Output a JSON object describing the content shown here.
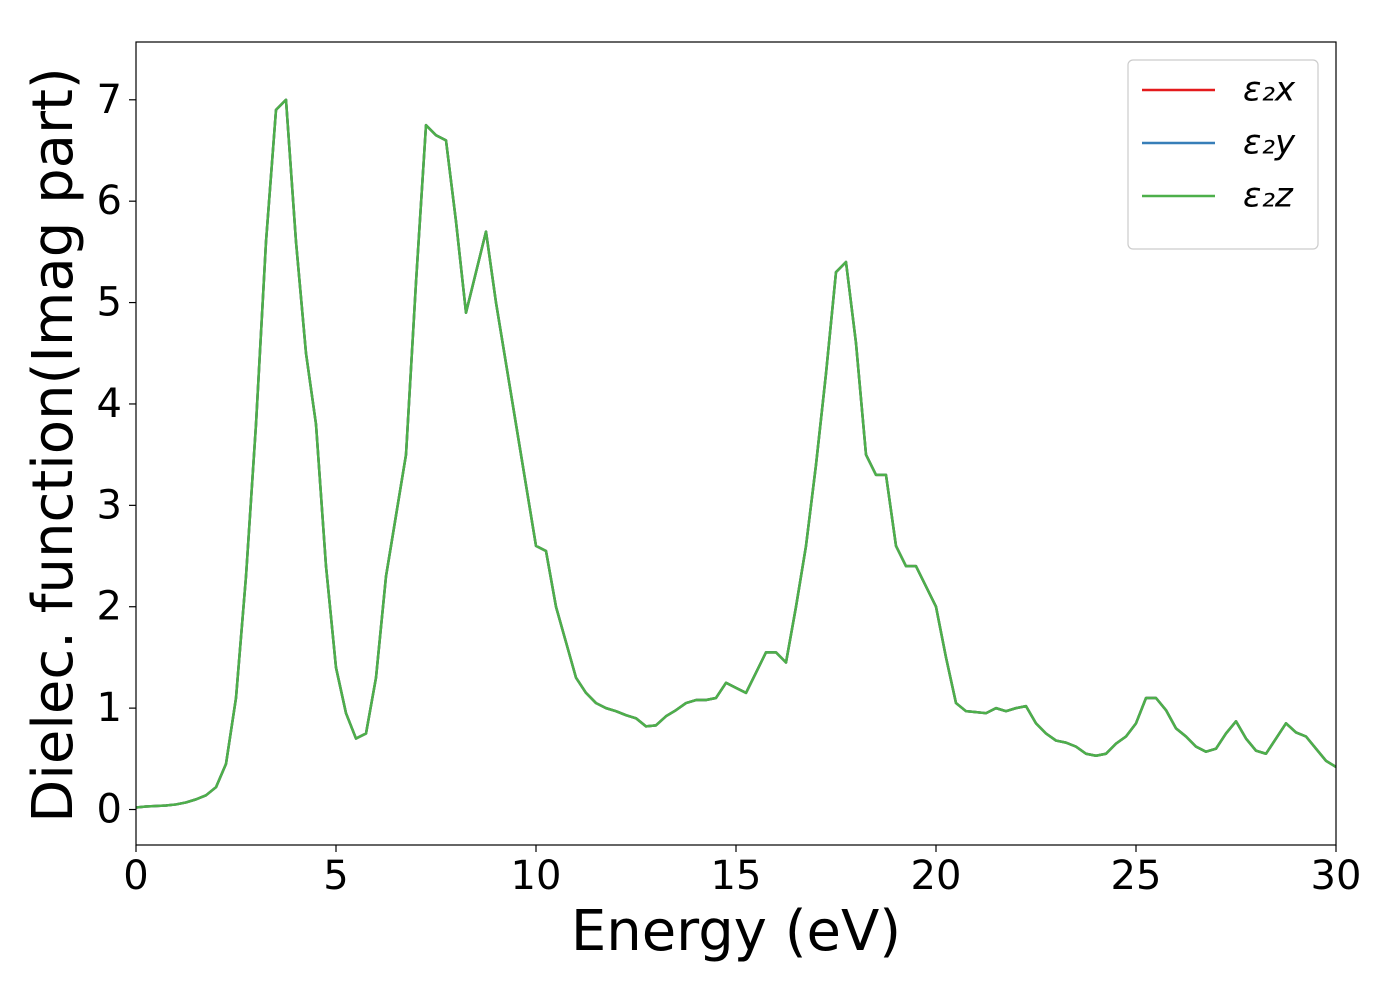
{
  "chart_data": {
    "type": "line",
    "xlabel": "Energy (eV)",
    "ylabel": "Dielec. function(Imag part)",
    "xlim": [
      0,
      30
    ],
    "ylim": [
      -0.35,
      7.57
    ],
    "xticks": [
      0,
      5,
      10,
      15,
      20,
      25,
      30
    ],
    "yticks": [
      0,
      1,
      2,
      3,
      4,
      5,
      6,
      7
    ],
    "grid": false,
    "legend": "upper right",
    "x": [
      0,
      0.25,
      0.5,
      0.75,
      1,
      1.25,
      1.5,
      1.75,
      2,
      2.25,
      2.5,
      2.75,
      3,
      3.25,
      3.5,
      3.75,
      4,
      4.25,
      4.5,
      4.75,
      5,
      5.25,
      5.5,
      5.75,
      6,
      6.25,
      6.5,
      6.75,
      7,
      7.25,
      7.5,
      7.75,
      8,
      8.25,
      8.5,
      8.75,
      9,
      9.25,
      9.5,
      9.75,
      10,
      10.25,
      10.5,
      10.75,
      11,
      11.25,
      11.5,
      11.75,
      12,
      12.25,
      12.5,
      12.75,
      13,
      13.25,
      13.5,
      13.75,
      14,
      14.25,
      14.5,
      14.75,
      15,
      15.25,
      15.5,
      15.75,
      16,
      16.25,
      16.5,
      16.75,
      17,
      17.25,
      17.5,
      17.75,
      18,
      18.25,
      18.5,
      18.75,
      19,
      19.25,
      19.5,
      19.75,
      20,
      20.25,
      20.5,
      20.75,
      21,
      21.25,
      21.5,
      21.75,
      22,
      22.25,
      22.5,
      22.75,
      23,
      23.25,
      23.5,
      23.75,
      24,
      24.25,
      24.5,
      24.75,
      25,
      25.25,
      25.5,
      25.75,
      26,
      26.25,
      26.5,
      26.75,
      27,
      27.25,
      27.5,
      27.75,
      28,
      28.25,
      28.5,
      28.75,
      29,
      29.25,
      29.5,
      29.75,
      30
    ],
    "series": [
      {
        "name": "ε₂x",
        "color": "#e41a1c",
        "values": [
          0.02,
          0.03,
          0.035,
          0.04,
          0.05,
          0.07,
          0.1,
          0.14,
          0.22,
          0.45,
          1.1,
          2.3,
          3.8,
          5.6,
          6.9,
          7.0,
          5.6,
          4.5,
          3.8,
          2.4,
          1.4,
          0.95,
          0.7,
          0.75,
          1.3,
          2.3,
          2.9,
          3.5,
          5.2,
          6.75,
          6.65,
          6.6,
          5.8,
          4.9,
          5.3,
          5.7,
          5.0,
          4.4,
          3.8,
          3.2,
          2.6,
          2.55,
          2.0,
          1.65,
          1.3,
          1.15,
          1.05,
          1.0,
          0.97,
          0.93,
          0.9,
          0.82,
          0.83,
          0.92,
          0.98,
          1.05,
          1.08,
          1.08,
          1.1,
          1.25,
          1.2,
          1.15,
          1.35,
          1.55,
          1.55,
          1.45,
          2.0,
          2.6,
          3.4,
          4.3,
          5.3,
          5.4,
          4.6,
          3.5,
          3.3,
          3.3,
          2.6,
          2.4,
          2.4,
          2.2,
          2.0,
          1.5,
          1.05,
          0.97,
          0.96,
          0.95,
          1.0,
          0.97,
          1.0,
          1.02,
          0.85,
          0.75,
          0.68,
          0.66,
          0.62,
          0.55,
          0.53,
          0.55,
          0.65,
          0.72,
          0.85,
          1.1,
          1.1,
          0.98,
          0.8,
          0.72,
          0.62,
          0.57,
          0.6,
          0.75,
          0.87,
          0.7,
          0.58,
          0.55,
          0.7,
          0.85,
          0.76,
          0.72,
          0.6,
          0.48,
          0.42
        ]
      },
      {
        "name": "ε₂y",
        "color": "#377eb8",
        "values": [
          0.02,
          0.03,
          0.035,
          0.04,
          0.05,
          0.07,
          0.1,
          0.14,
          0.22,
          0.45,
          1.1,
          2.3,
          3.8,
          5.6,
          6.9,
          7.0,
          5.6,
          4.5,
          3.8,
          2.4,
          1.4,
          0.95,
          0.7,
          0.75,
          1.3,
          2.3,
          2.9,
          3.5,
          5.2,
          6.75,
          6.65,
          6.6,
          5.8,
          4.9,
          5.3,
          5.7,
          5.0,
          4.4,
          3.8,
          3.2,
          2.6,
          2.55,
          2.0,
          1.65,
          1.3,
          1.15,
          1.05,
          1.0,
          0.97,
          0.93,
          0.9,
          0.82,
          0.83,
          0.92,
          0.98,
          1.05,
          1.08,
          1.08,
          1.1,
          1.25,
          1.2,
          1.15,
          1.35,
          1.55,
          1.55,
          1.45,
          2.0,
          2.6,
          3.4,
          4.3,
          5.3,
          5.4,
          4.6,
          3.5,
          3.3,
          3.3,
          2.6,
          2.4,
          2.4,
          2.2,
          2.0,
          1.5,
          1.05,
          0.97,
          0.96,
          0.95,
          1.0,
          0.97,
          1.0,
          1.02,
          0.85,
          0.75,
          0.68,
          0.66,
          0.62,
          0.55,
          0.53,
          0.55,
          0.65,
          0.72,
          0.85,
          1.1,
          1.1,
          0.98,
          0.8,
          0.72,
          0.62,
          0.57,
          0.6,
          0.75,
          0.87,
          0.7,
          0.58,
          0.55,
          0.7,
          0.85,
          0.76,
          0.72,
          0.6,
          0.48,
          0.42
        ]
      },
      {
        "name": "ε₂z",
        "color": "#4daf4a",
        "values": [
          0.02,
          0.03,
          0.035,
          0.04,
          0.05,
          0.07,
          0.1,
          0.14,
          0.22,
          0.45,
          1.1,
          2.3,
          3.8,
          5.6,
          6.9,
          7.0,
          5.6,
          4.5,
          3.8,
          2.4,
          1.4,
          0.95,
          0.7,
          0.75,
          1.3,
          2.3,
          2.9,
          3.5,
          5.2,
          6.75,
          6.65,
          6.6,
          5.8,
          4.9,
          5.3,
          5.7,
          5.0,
          4.4,
          3.8,
          3.2,
          2.6,
          2.55,
          2.0,
          1.65,
          1.3,
          1.15,
          1.05,
          1.0,
          0.97,
          0.93,
          0.9,
          0.82,
          0.83,
          0.92,
          0.98,
          1.05,
          1.08,
          1.08,
          1.1,
          1.25,
          1.2,
          1.15,
          1.35,
          1.55,
          1.55,
          1.45,
          2.0,
          2.6,
          3.4,
          4.3,
          5.3,
          5.4,
          4.6,
          3.5,
          3.3,
          3.3,
          2.6,
          2.4,
          2.4,
          2.2,
          2.0,
          1.5,
          1.05,
          0.97,
          0.96,
          0.95,
          1.0,
          0.97,
          1.0,
          1.02,
          0.85,
          0.75,
          0.68,
          0.66,
          0.62,
          0.55,
          0.53,
          0.55,
          0.65,
          0.72,
          0.85,
          1.1,
          1.1,
          0.98,
          0.8,
          0.72,
          0.62,
          0.57,
          0.6,
          0.75,
          0.87,
          0.7,
          0.58,
          0.55,
          0.7,
          0.85,
          0.76,
          0.72,
          0.6,
          0.48,
          0.42
        ]
      }
    ]
  }
}
